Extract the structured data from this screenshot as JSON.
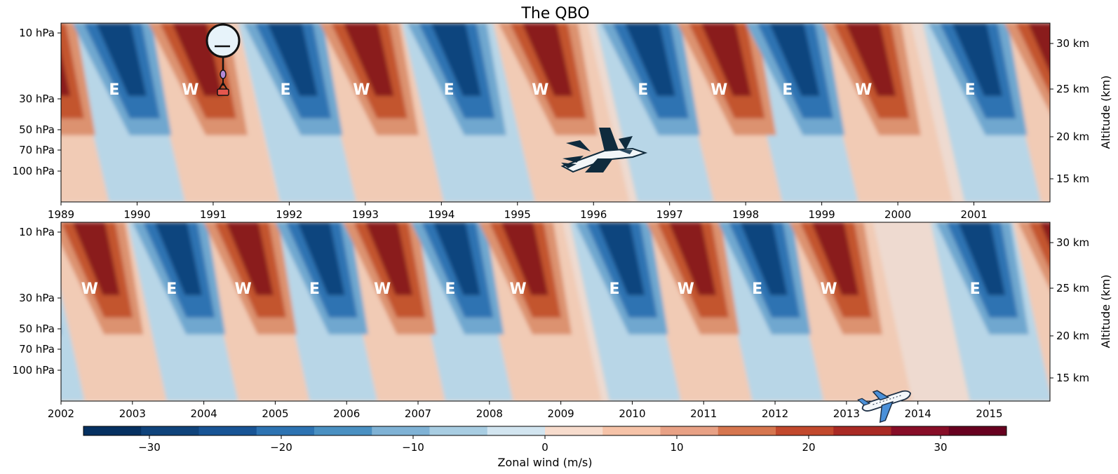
{
  "chart_data": [
    {
      "type": "heatmap",
      "title": "The QBO",
      "x_range": [
        1989,
        2002
      ],
      "x_ticks": [
        "1989",
        "1990",
        "1991",
        "1992",
        "1993",
        "1994",
        "1995",
        "1996",
        "1997",
        "1998",
        "1999",
        "2000",
        "2001"
      ],
      "y_ticks_left": [
        "10 hPa",
        "30 hPa",
        "50 hPa",
        "70 hPa",
        "100 hPa"
      ],
      "y_ticks_right": [
        "30 km",
        "25 km",
        "20 km",
        "15 km"
      ],
      "y2label": "Altitude (km)",
      "phases": [
        {
          "year": 1989.7,
          "label": "E"
        },
        {
          "year": 1990.7,
          "label": "W"
        },
        {
          "year": 1991.95,
          "label": "E"
        },
        {
          "year": 1992.95,
          "label": "W"
        },
        {
          "year": 1994.1,
          "label": "E"
        },
        {
          "year": 1995.3,
          "label": "W"
        },
        {
          "year": 1996.65,
          "label": "E"
        },
        {
          "year": 1997.65,
          "label": "W"
        },
        {
          "year": 1998.55,
          "label": "E"
        },
        {
          "year": 1999.55,
          "label": "W"
        },
        {
          "year": 2000.95,
          "label": "E"
        }
      ],
      "icons": [
        "weather-balloon-icon",
        "fighter-jet-icon"
      ]
    },
    {
      "type": "heatmap",
      "x_range": [
        2002,
        2015.85
      ],
      "x_ticks": [
        "2002",
        "2003",
        "2004",
        "2005",
        "2006",
        "2007",
        "2008",
        "2009",
        "2010",
        "2011",
        "2012",
        "2013",
        "2014",
        "2015"
      ],
      "y_ticks_left": [
        "10 hPa",
        "30 hPa",
        "50 hPa",
        "70 hPa",
        "100 hPa"
      ],
      "y_ticks_right": [
        "30 km",
        "25 km",
        "20 km",
        "15 km"
      ],
      "y2label": "Altitude (km)",
      "phases": [
        {
          "year": 2002.4,
          "label": "W"
        },
        {
          "year": 2003.55,
          "label": "E"
        },
        {
          "year": 2004.55,
          "label": "W"
        },
        {
          "year": 2005.55,
          "label": "E"
        },
        {
          "year": 2006.5,
          "label": "W"
        },
        {
          "year": 2007.45,
          "label": "E"
        },
        {
          "year": 2008.4,
          "label": "W"
        },
        {
          "year": 2009.75,
          "label": "E"
        },
        {
          "year": 2010.75,
          "label": "W"
        },
        {
          "year": 2011.75,
          "label": "E"
        },
        {
          "year": 2012.75,
          "label": "W"
        },
        {
          "year": 2014.8,
          "label": "E"
        }
      ],
      "icons": [
        "airliner-icon"
      ]
    }
  ],
  "colorbar": {
    "label": "Zonal wind (m/s)",
    "range": [
      -35,
      35
    ],
    "ticks": [
      "−30",
      "−20",
      "−10",
      "0",
      "10",
      "20",
      "30"
    ],
    "tick_values": [
      -30,
      -20,
      -10,
      0,
      10,
      20,
      30
    ],
    "colors": [
      "#053061",
      "#0f437b",
      "#185495",
      "#2d73b2",
      "#4a90c2",
      "#7fb2d5",
      "#a8cde2",
      "#d2e5f0",
      "#f7dccd",
      "#f6c3a8",
      "#e8a185",
      "#d6764f",
      "#c2492d",
      "#a92a24",
      "#870d27",
      "#67001f"
    ]
  }
}
